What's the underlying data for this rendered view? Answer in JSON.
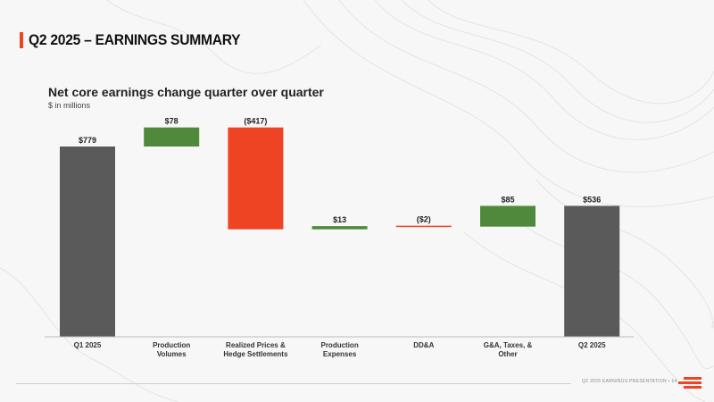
{
  "header": {
    "title": "Q2 2025 – EARNINGS SUMMARY"
  },
  "footer": {
    "text": "Q2 2025 EARNINGS PRESENTATION  •  14"
  },
  "colors": {
    "accent": "#ef4423",
    "increase": "#4f8a3c",
    "decrease": "#ef4423",
    "total": "#5a5a5a",
    "text": "#222222"
  },
  "chart_data": {
    "type": "bar",
    "subtype": "waterfall",
    "title": "Net core earnings change quarter over quarter",
    "subtitle": "$ in millions",
    "xlabel": "",
    "ylabel": "",
    "ylim": [
      0,
      830
    ],
    "grid": false,
    "legend": "none",
    "categories": [
      [
        "Q1 2025"
      ],
      [
        "Production",
        "Volumes"
      ],
      [
        "Realized Prices &",
        "Hedge Settlements"
      ],
      [
        "Production",
        "Expenses"
      ],
      [
        "DD&A"
      ],
      [
        "G&A, Taxes, &",
        "Other"
      ],
      [
        "Q2 2025"
      ]
    ],
    "values": [
      779,
      78,
      -417,
      13,
      -2,
      85,
      536
    ],
    "kinds": [
      "total",
      "increase",
      "decrease",
      "increase",
      "decrease",
      "increase",
      "total"
    ],
    "data_labels": [
      "$779",
      "$78",
      "($417)",
      "$13",
      "($2)",
      "$85",
      "$536"
    ]
  }
}
